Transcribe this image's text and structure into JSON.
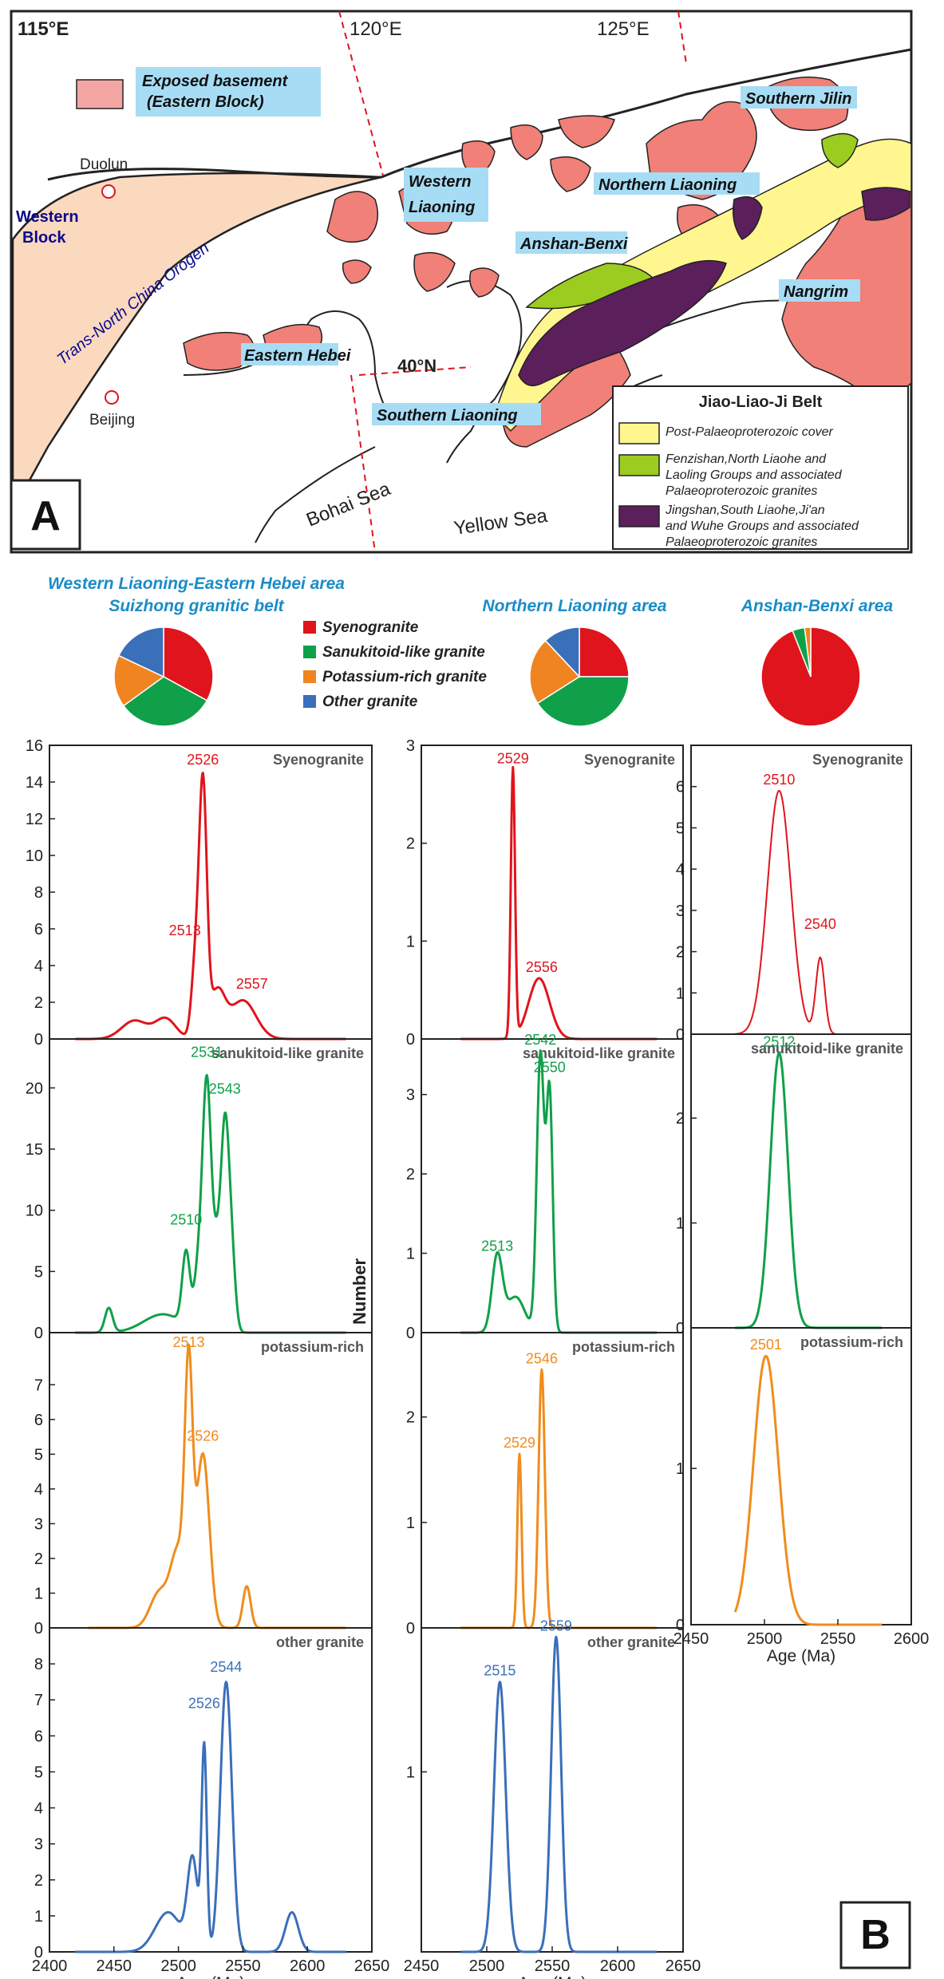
{
  "panel_a": {
    "panel_label": "A",
    "coords": {
      "lon115": "115°E",
      "lon120": "120°E",
      "lon125": "125°E",
      "lat40": "40°N"
    },
    "places": {
      "duolun": "Duolun",
      "beijing": "Beijing",
      "western_block": [
        "Western",
        "Block"
      ],
      "orogen": "Trans-North China Orogen",
      "western_liaoning": [
        "Western",
        "Liaoning"
      ],
      "eastern_hebei": "Eastern Hebei",
      "southern_liaoning": "Southern Liaoning",
      "northern_liaoning": "Northern Liaoning",
      "anshan_benxi": "Anshan-Benxi",
      "nangrim": "Nangrim",
      "southern_jilin": "Southern Jilin",
      "bohai_sea": "Bohai Sea",
      "yellow_sea": "Yellow Sea"
    },
    "exposed_basement_legend": [
      "Exposed basement",
      "(Eastern Block)"
    ],
    "legend": {
      "title": "Jiao-Liao-Ji Belt",
      "items": [
        {
          "lines": [
            "Post-Palaeoproterozoic cover"
          ],
          "color": "#fff68f"
        },
        {
          "lines": [
            "Fenzishan,North Liaohe and",
            "Laoling Groups and associated",
            "Palaeoproterozoic granites"
          ],
          "color": "#9ccc20"
        },
        {
          "lines": [
            "Jingshan,South Liaohe,Ji'an",
            "and Wuhe Groups and associated",
            "Palaeoproterozoic granites"
          ],
          "color": "#5b1f5c"
        }
      ]
    },
    "colors": {
      "basement": "#f08078",
      "orogen": "#fbd9bf"
    }
  },
  "panel_b": {
    "panel_label": "B",
    "areas": [
      {
        "title": [
          "Western Liaoning-Eastern Hebei area",
          "Suizhong granitic belt"
        ]
      },
      {
        "title": [
          "Northern Liaoning area"
        ]
      },
      {
        "title": [
          "Anshan-Benxi area"
        ]
      }
    ],
    "rock_legend": [
      {
        "label": "Syenogranite",
        "color": "#e0141c"
      },
      {
        "label": "Sanukitoid-like granite",
        "color": "#10a04a"
      },
      {
        "label": "Potassium-rich granite",
        "color": "#f08420"
      },
      {
        "label": "Other granite",
        "color": "#3a6fba"
      }
    ]
  },
  "chart_data": {
    "type": "line",
    "xlabel": "Age (Ma)",
    "ylabel": "Number",
    "pies": [
      {
        "area": "Western Liaoning-Eastern Hebei area",
        "values": [
          33,
          32,
          17,
          18
        ]
      },
      {
        "area": "Northern Liaoning area",
        "values": [
          25,
          41,
          22,
          12
        ]
      },
      {
        "area": "Anshan-Benxi area",
        "values": [
          94,
          4,
          2,
          0
        ]
      }
    ],
    "columns": [
      {
        "xlim": [
          2400,
          2650
        ],
        "xticks": [
          2400,
          2450,
          2500,
          2550,
          2600,
          2650
        ],
        "panels": [
          {
            "title": "Syenogranite",
            "color": "#e0141c",
            "ylim": [
              0,
              16
            ],
            "yticks": [
              0,
              2,
              4,
              6,
              8,
              10,
              12,
              14,
              16
            ],
            "components": [
              [
                2466,
                10,
                1.0
              ],
              [
                2490,
                8,
                1.1
              ],
              [
                2513,
                3,
                3.8
              ],
              [
                2519,
                3,
                13.5
              ],
              [
                2530,
                6,
                2.5
              ],
              [
                2550,
                10,
                2.1
              ]
            ],
            "peaks": [
              {
                "x": 2526,
                "lx": 2519,
                "ly": 14.6
              },
              {
                "x": 2513,
                "lx": 2505,
                "ly": 5.3
              },
              {
                "x": 2557,
                "lx": 2557,
                "ly": 2.4
              }
            ]
          },
          {
            "title": "sanukitoid-like granite",
            "color": "#10a04a",
            "ylim": [
              0,
              24
            ],
            "yticks": [
              0,
              5,
              10,
              15,
              20
            ],
            "components": [
              [
                2446,
                3,
                2.0
              ],
              [
                2488,
                15,
                1.5
              ],
              [
                2506,
                3,
                6.0
              ],
              [
                2515,
                3,
                4.0
              ],
              [
                2522,
                3.5,
                20.5
              ],
              [
                2530,
                3,
                6.0
              ],
              [
                2536,
                3,
                15.5
              ],
              [
                2541,
                3,
                6.5
              ]
            ],
            "peaks": [
              {
                "x": 2531,
                "lx": 2522,
                "ly": 22.0
              },
              {
                "x": 2543,
                "lx": 2536,
                "ly": 19.0
              },
              {
                "x": 2510,
                "lx": 2506,
                "ly": 8.3
              }
            ]
          },
          {
            "title": "potassium-rich",
            "color": "#f08c1c",
            "ylim": [
              0,
              8.5
            ],
            "yticks": [
              0,
              1,
              2,
              3,
              4,
              5,
              6,
              7
            ],
            "xstart": 2430,
            "components": [
              [
                2485,
                7,
                1.0
              ],
              [
                2500,
                6,
                2.2
              ],
              [
                2508,
                3,
                6.8
              ],
              [
                2519,
                5,
                5.0
              ],
              [
                2553,
                3,
                1.2
              ]
            ],
            "peaks": [
              {
                "x": 2513,
                "lx": 2508,
                "ly": 7.9
              },
              {
                "x": 2526,
                "lx": 2519,
                "ly": 5.2
              }
            ]
          },
          {
            "title": "other granite",
            "color": "#3a6fba",
            "ylim": [
              0,
              9
            ],
            "yticks": [
              0,
              1,
              2,
              3,
              4,
              5,
              6,
              7,
              8
            ],
            "components": [
              [
                2492,
                10,
                1.1
              ],
              [
                2511,
                4,
                2.5
              ],
              [
                2520,
                2,
                5.6
              ],
              [
                2537,
                4.5,
                7.5
              ],
              [
                2588,
                5,
                1.1
              ]
            ],
            "peaks": [
              {
                "x": 2526,
                "lx": 2520,
                "ly": 6.6
              },
              {
                "x": 2544,
                "lx": 2537,
                "ly": 7.6
              }
            ]
          }
        ]
      },
      {
        "xlim": [
          2450,
          2650
        ],
        "xticks": [
          2450,
          2500,
          2550,
          2600,
          2650
        ],
        "panels": [
          {
            "title": "Syenogranite",
            "color": "#e0141c",
            "ylim": [
              0,
              3
            ],
            "yticks": [
              0,
              1,
              2,
              3
            ],
            "components": [
              [
                2520,
                1.6,
                2.75
              ],
              [
                2540,
                8,
                0.62
              ]
            ],
            "peaks": [
              {
                "x": 2529,
                "lx": 2520,
                "ly": 2.75
              },
              {
                "x": 2556,
                "lx": 2542,
                "ly": 0.62
              }
            ]
          },
          {
            "title": "sanukitoid-like granite",
            "color": "#10a04a",
            "ylim": [
              0,
              3.7
            ],
            "yticks": [
              0,
              1,
              2,
              3
            ],
            "components": [
              [
                2508,
                4,
                0.95
              ],
              [
                2522,
                7,
                0.45
              ],
              [
                2541,
                2.8,
                3.5
              ],
              [
                2548,
                2.4,
                3.0
              ]
            ],
            "peaks": [
              {
                "x": 2542,
                "lx": 2541,
                "ly": 3.55
              },
              {
                "x": 2550,
                "lx": 2548,
                "ly": 3.2
              },
              {
                "x": 2513,
                "lx": 2508,
                "ly": 0.95
              }
            ]
          },
          {
            "title": "potassium-rich",
            "color": "#f08c1c",
            "ylim": [
              0,
              2.8
            ],
            "yticks": [
              0,
              1,
              2
            ],
            "components": [
              [
                2525,
                1.6,
                1.65
              ],
              [
                2542,
                2.4,
                2.45
              ]
            ],
            "peaks": [
              {
                "x": 2529,
                "lx": 2525,
                "ly": 1.65
              },
              {
                "x": 2546,
                "lx": 2542,
                "ly": 2.45
              }
            ]
          },
          {
            "title": "other granite",
            "color": "#3a6fba",
            "ylim": [
              0,
              1.8
            ],
            "yticks": [
              1
            ],
            "components": [
              [
                2510,
                4.5,
                1.5
              ],
              [
                2553,
                3.8,
                1.75
              ]
            ],
            "peaks": [
              {
                "x": 2515,
                "lx": 2510,
                "ly": 1.5
              },
              {
                "x": 2559,
                "lx": 2553,
                "ly": 1.75
              }
            ]
          }
        ]
      },
      {
        "xlim": [
          2450,
          2600
        ],
        "xticks": [
          2450,
          2500,
          2550,
          2600
        ],
        "panels": [
          {
            "title": "Syenogranite",
            "color": "#e0141c",
            "ylim": [
              0,
              7
            ],
            "yticks": [
              0,
              1,
              2,
              3,
              4,
              5,
              6
            ],
            "components": [
              [
                2510,
                8,
                5.9
              ],
              [
                2538,
                3,
                1.85
              ]
            ],
            "peaks": [
              {
                "x": 2510,
                "lx": 2510,
                "ly": 5.9
              },
              {
                "x": 2540,
                "lx": 2538,
                "ly": 2.4
              }
            ]
          },
          {
            "title": "sanukitoid-like granite",
            "color": "#10a04a",
            "ylim": [
              0,
              2.8
            ],
            "yticks": [
              0,
              1,
              2
            ],
            "components": [
              [
                2510,
                6,
                2.62
              ]
            ],
            "peaks": [
              {
                "x": 2512,
                "lx": 2510,
                "ly": 2.62
              }
            ]
          },
          {
            "title": "potassium-rich",
            "color": "#f08c1c",
            "ylim": [
              0,
              1.9
            ],
            "yticks": [
              0,
              1
            ],
            "components": [
              [
                2501,
                8.5,
                1.72
              ]
            ],
            "peaks": [
              {
                "x": 2501,
                "lx": 2501,
                "ly": 1.72
              }
            ]
          }
        ]
      }
    ]
  }
}
